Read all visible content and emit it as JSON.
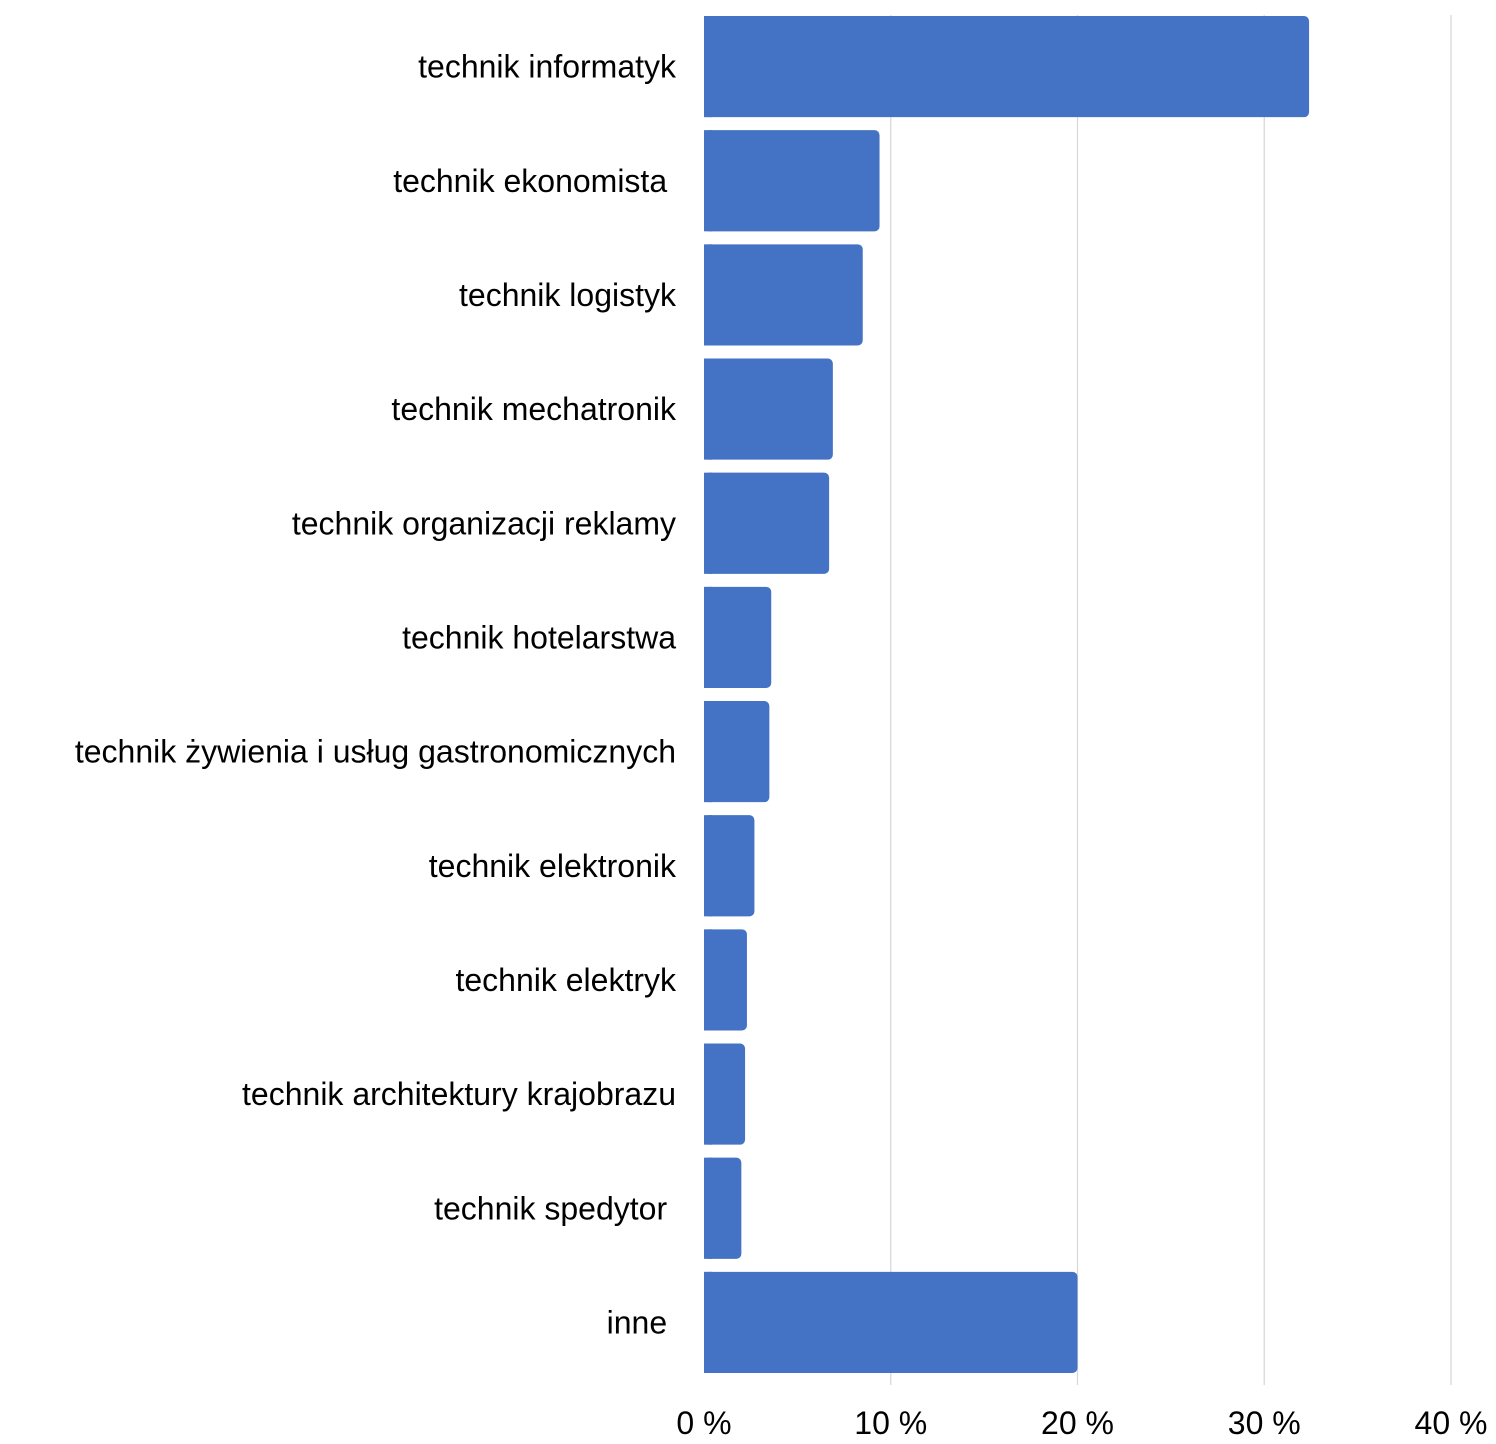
{
  "chart_data": {
    "type": "bar",
    "orientation": "horizontal",
    "categories": [
      "technik informatyk",
      "technik ekonomista ",
      "technik logistyk",
      "technik mechatronik",
      "technik organizacji reklamy",
      "technik hotelarstwa",
      "technik żywienia i usług gastronomicznych",
      "technik elektronik",
      "technik elektryk",
      "technik architektury krajobrazu",
      "technik spedytor ",
      "inne "
    ],
    "values": [
      32.4,
      9.4,
      8.5,
      6.9,
      6.7,
      3.6,
      3.5,
      2.7,
      2.3,
      2.2,
      2.0,
      20.0
    ],
    "xlim": [
      0,
      40
    ],
    "xticks": [
      "0 %",
      "10 %",
      "20 %",
      "30 %",
      "40 %"
    ],
    "title": "",
    "xlabel": "",
    "ylabel": "",
    "grid": "vertical",
    "legend": "none",
    "bar_color": "#4472C4",
    "grid_color": "#D9D9D9"
  }
}
